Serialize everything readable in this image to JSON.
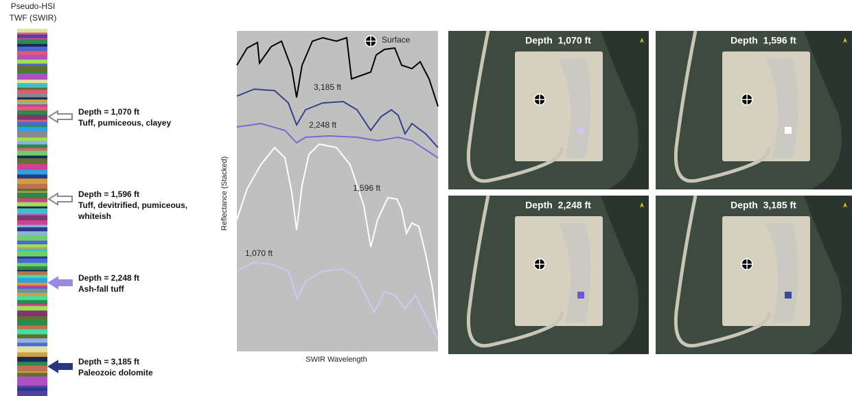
{
  "column": {
    "title_lines": [
      "Pseudo-HSI",
      "TWF (SWIR)"
    ]
  },
  "annotations": [
    {
      "depth": "Depth = 1,070 ft",
      "lines": [
        "Tuff, pumiceous, clayey"
      ]
    },
    {
      "depth": "Depth = 1,596 ft",
      "lines": [
        "Tuff, devitrified, pumiceous,",
        "whiteish"
      ]
    },
    {
      "depth": "Depth = 2,248 ft",
      "lines": [
        "Ash-fall tuff"
      ]
    },
    {
      "depth": "Depth = 3,185 ft",
      "lines": [
        "Paleozoic dolomite"
      ]
    }
  ],
  "spectra": {
    "y_label": "Reflectance (Stacked)",
    "x_label": "SWIR Wavelength",
    "legend": "Surface",
    "curve_labels": [
      "3,185 ft",
      "2,248 ft",
      "1,596 ft",
      "1,070 ft"
    ]
  },
  "panels": [
    {
      "title": "Depth  1,070 ft"
    },
    {
      "title": "Depth  1,596 ft"
    },
    {
      "title": "Depth  2,248 ft"
    },
    {
      "title": "Depth  3,185 ft"
    }
  ]
}
